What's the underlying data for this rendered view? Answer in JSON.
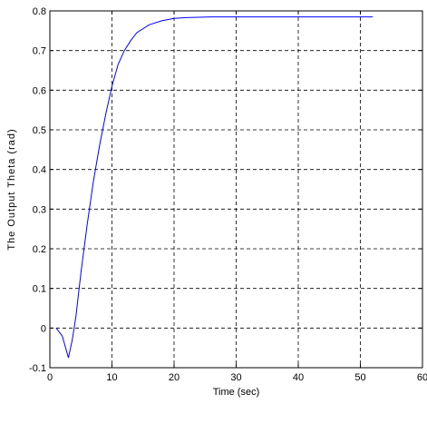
{
  "chart_data": {
    "type": "line",
    "xlabel": "Time (sec)",
    "ylabel": "The Output Theta (rad)",
    "xlim": [
      0,
      60
    ],
    "ylim": [
      -0.1,
      0.8
    ],
    "xticks": [
      0,
      10,
      20,
      30,
      40,
      50,
      60
    ],
    "yticks": [
      -0.1,
      0,
      0.1,
      0.2,
      0.3,
      0.4,
      0.5,
      0.6,
      0.7,
      0.8
    ],
    "xtick_labels": [
      "0",
      "10",
      "20",
      "30",
      "40",
      "50",
      "60"
    ],
    "ytick_labels": [
      "-0.1",
      "0",
      "0.1",
      "0.2",
      "0.3",
      "0.4",
      "0.5",
      "0.6",
      "0.7",
      "0.8"
    ],
    "grid": true,
    "series": [
      {
        "color": "#0000ff",
        "x": [
          1,
          2,
          3,
          3.6,
          4.2,
          5,
          6,
          7,
          8,
          9,
          10,
          11,
          12,
          13,
          14,
          16,
          18,
          20,
          22,
          24,
          26,
          30,
          40,
          52
        ],
        "y": [
          0,
          -0.02,
          -0.075,
          -0.03,
          0.03,
          0.14,
          0.26,
          0.37,
          0.46,
          0.54,
          0.61,
          0.665,
          0.7,
          0.725,
          0.745,
          0.765,
          0.775,
          0.781,
          0.783,
          0.784,
          0.785,
          0.785,
          0.785,
          0.785
        ]
      }
    ]
  }
}
